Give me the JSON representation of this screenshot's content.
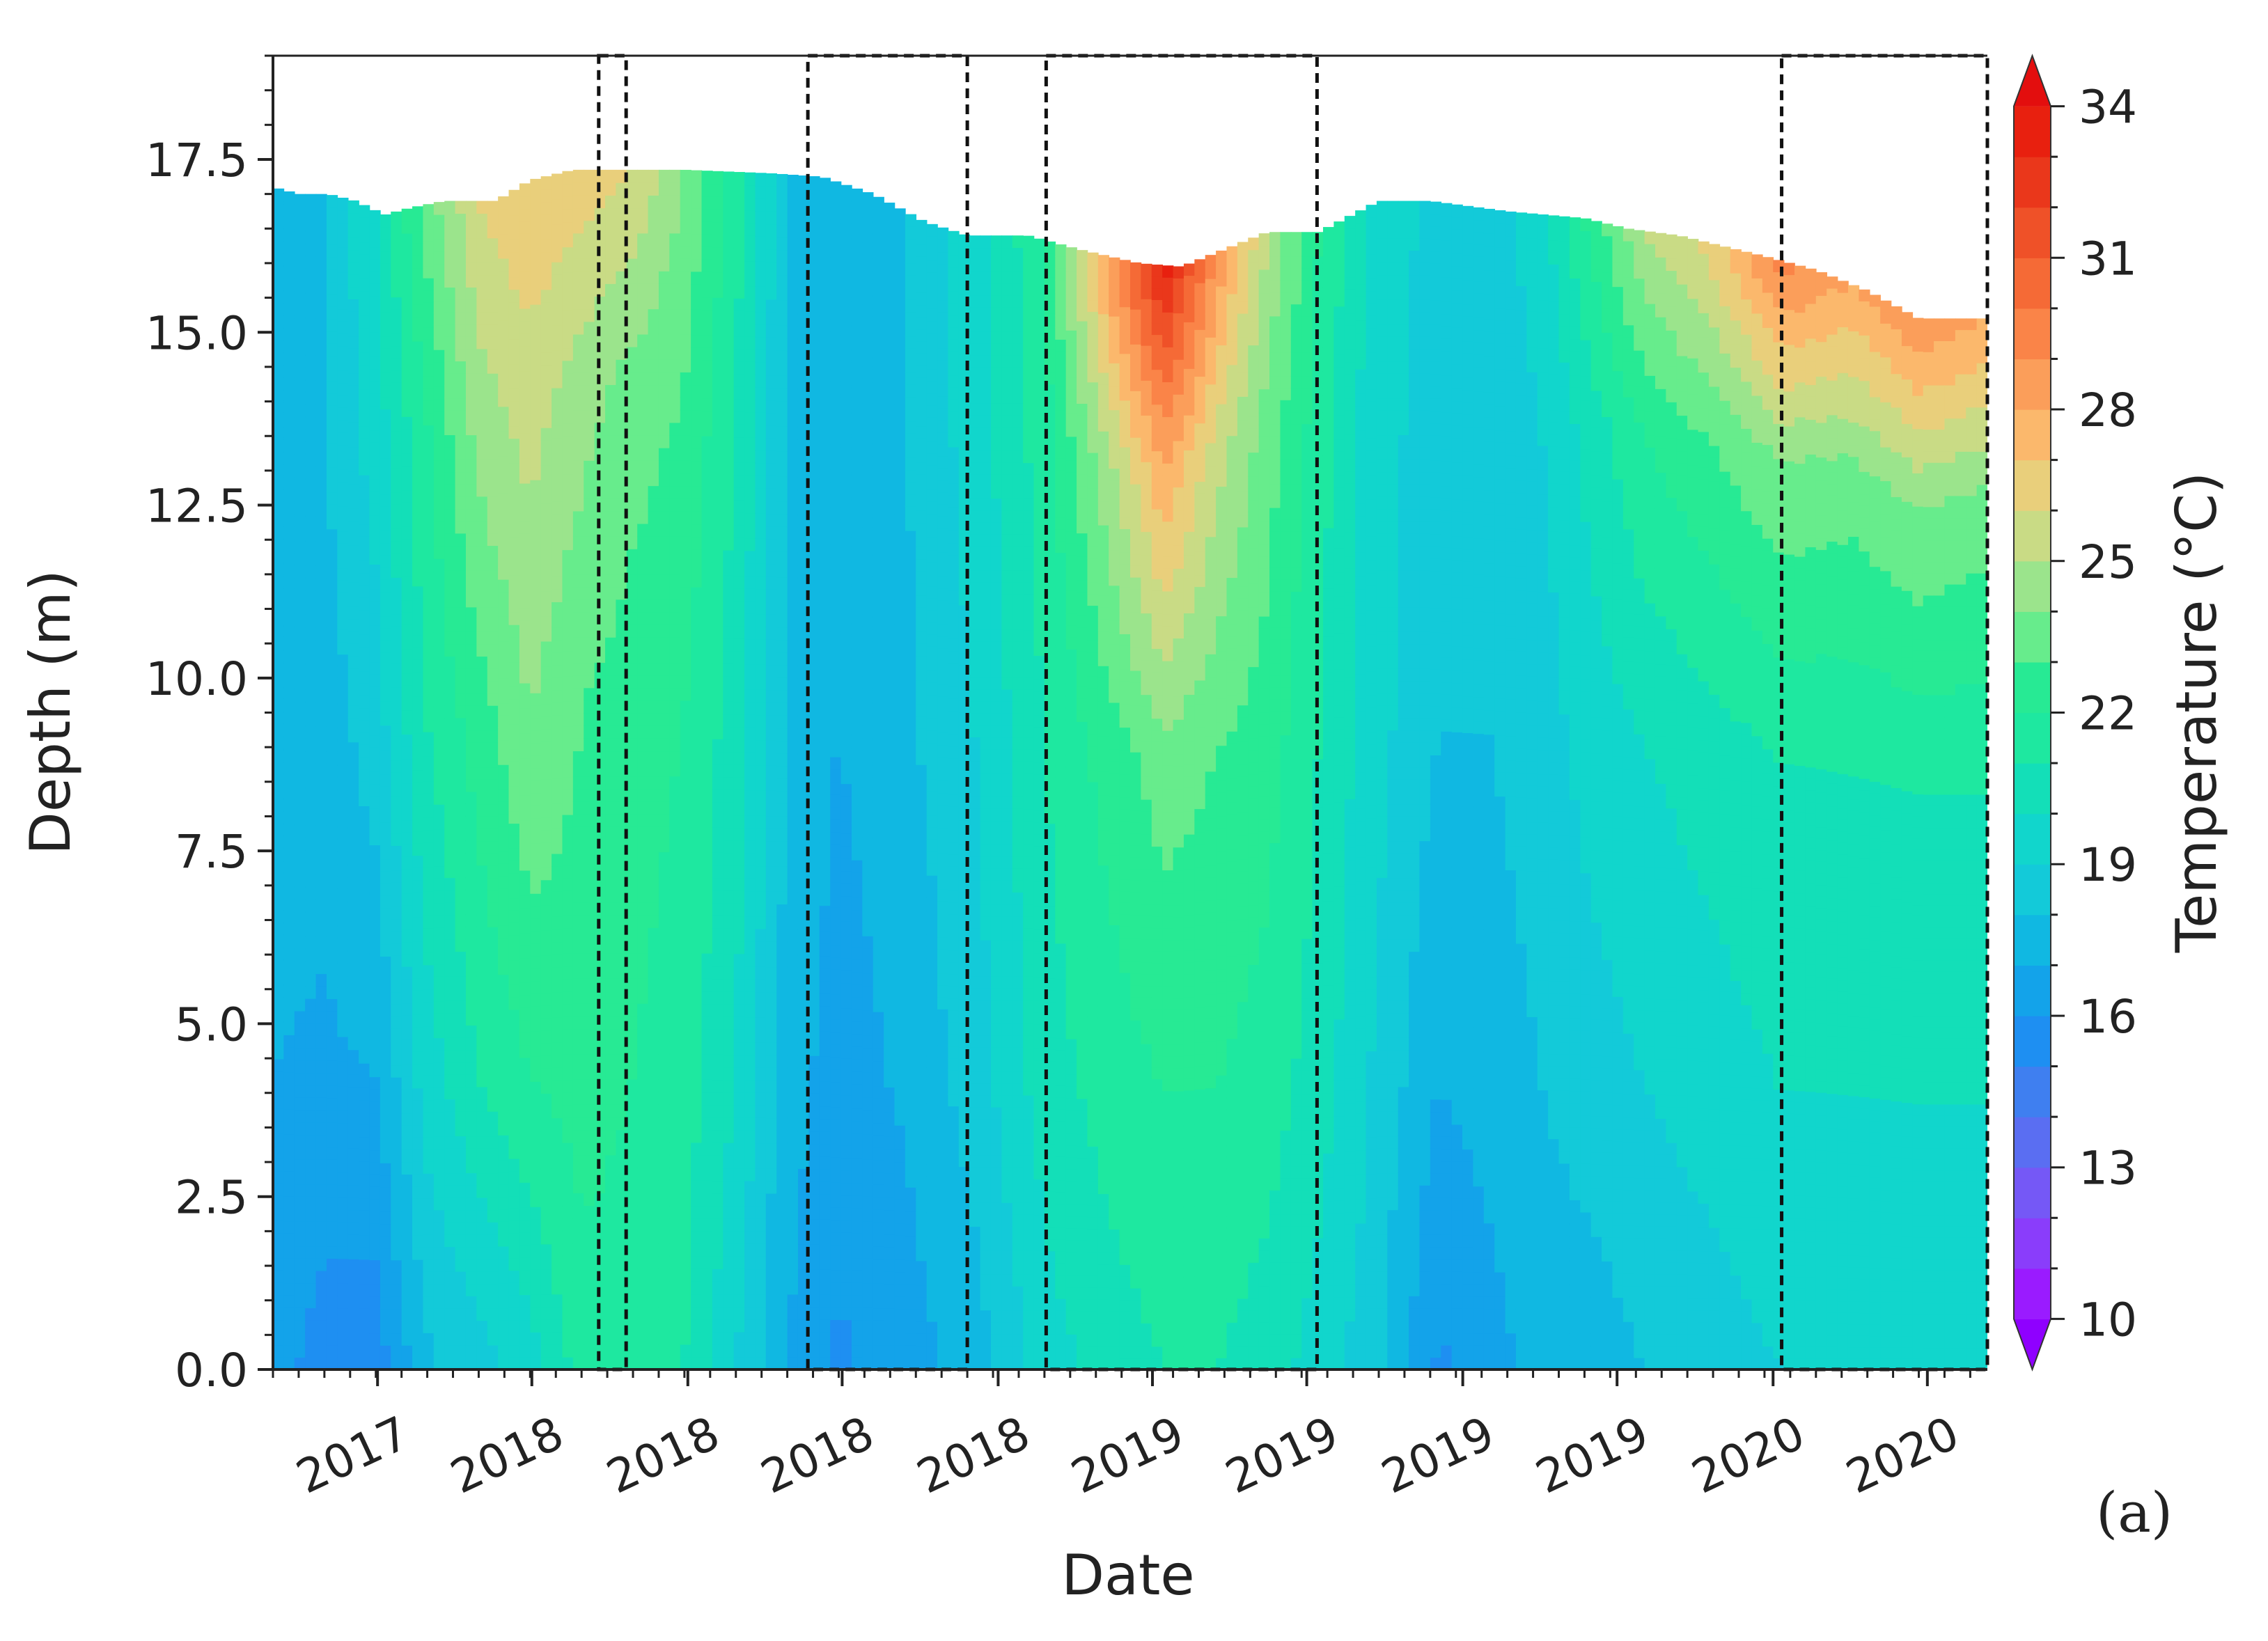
{
  "chart_data": {
    "type": "heatmap",
    "xlabel": "Date",
    "ylabel": "Depth (m)",
    "colorbar_label": "Temperature (°C)",
    "panel_label": "(a)",
    "x_tick_labels": [
      "2017",
      "2018",
      "2018",
      "2018",
      "2018",
      "2019",
      "2019",
      "2019",
      "2019",
      "2020",
      "2020"
    ],
    "x_domain": [
      0,
      100
    ],
    "x_tick_positions": [
      6.1,
      15.1,
      24.2,
      33.2,
      42.3,
      51.3,
      60.3,
      69.4,
      78.4,
      87.5,
      96.5
    ],
    "ylim": [
      0,
      19
    ],
    "y_ticks": [
      0.0,
      2.5,
      5.0,
      7.5,
      10.0,
      12.5,
      15.0,
      17.5
    ],
    "y_tick_labels": [
      "0.0",
      "2.5",
      "5.0",
      "7.5",
      "10.0",
      "12.5",
      "15.0",
      "17.5"
    ],
    "colorbar_ticks": [
      10,
      13,
      16,
      19,
      22,
      25,
      28,
      31,
      34
    ],
    "colorbar_tick_labels": [
      "10",
      "13",
      "16",
      "19",
      "22",
      "25",
      "28",
      "31",
      "34"
    ],
    "colorbar_range": [
      9,
      35
    ],
    "colorbar_extend": "both",
    "color_levels": [
      {
        "upto": 10,
        "color": "#8f00ff"
      },
      {
        "upto": 11,
        "color": "#9a1bff"
      },
      {
        "upto": 12,
        "color": "#8a3dfb"
      },
      {
        "upto": 13,
        "color": "#7558f6"
      },
      {
        "upto": 14,
        "color": "#5a6ef2"
      },
      {
        "upto": 15,
        "color": "#3f7ff0"
      },
      {
        "upto": 16,
        "color": "#1e8ff2"
      },
      {
        "upto": 17,
        "color": "#13a3ea"
      },
      {
        "upto": 18,
        "color": "#10b8e2"
      },
      {
        "upto": 19,
        "color": "#13cad9"
      },
      {
        "upto": 20,
        "color": "#11d6cc"
      },
      {
        "upto": 21,
        "color": "#13dfb8"
      },
      {
        "upto": 22,
        "color": "#1ee8a0"
      },
      {
        "upto": 23,
        "color": "#27ea94"
      },
      {
        "upto": 24,
        "color": "#67ec8c"
      },
      {
        "upto": 25,
        "color": "#9be48c"
      },
      {
        "upto": 26,
        "color": "#c9db85"
      },
      {
        "upto": 27,
        "color": "#e9cf7b"
      },
      {
        "upto": 28,
        "color": "#fbb86c"
      },
      {
        "upto": 29,
        "color": "#fb9e5a"
      },
      {
        "upto": 30,
        "color": "#fa8448"
      },
      {
        "upto": 31,
        "color": "#f56a36"
      },
      {
        "upto": 32,
        "color": "#ef5128"
      },
      {
        "upto": 33,
        "color": "#ea371b"
      },
      {
        "upto": 34,
        "color": "#e8200f"
      },
      {
        "upto": 99,
        "color": "#e30e0e"
      }
    ],
    "surface_depth": {
      "x": [
        0,
        1.5,
        3.2,
        4.8,
        6.5,
        8.0,
        10.0,
        13.0,
        15.0,
        17.5,
        20.0,
        24.0,
        29.0,
        32.0,
        35.0,
        38.0,
        40.5,
        44.0,
        47.0,
        50.5,
        53.0,
        55.5,
        58.0,
        61.0,
        64.5,
        67.5,
        72.0,
        76.5,
        79.0,
        82.0,
        87.0,
        90.0,
        93.0,
        96.0,
        100
      ],
      "y": [
        17.1,
        17.0,
        17.0,
        16.9,
        16.7,
        16.8,
        16.9,
        16.9,
        17.2,
        17.35,
        17.35,
        17.35,
        17.3,
        17.25,
        17.0,
        16.6,
        16.4,
        16.4,
        16.2,
        16.0,
        15.95,
        16.2,
        16.45,
        16.45,
        16.9,
        16.9,
        16.75,
        16.65,
        16.5,
        16.4,
        16.1,
        15.9,
        15.6,
        15.2,
        15.2
      ]
    },
    "temperature_profiles": [
      {
        "x": 0,
        "bottom": 16.5,
        "mid_low": 17.0,
        "mid": 17.5,
        "upper": 17.8,
        "surface": 18.0
      },
      {
        "x": 3,
        "bottom": 15.5,
        "mid_low": 16.8,
        "mid": 17.5,
        "upper": 18.0,
        "surface": 18.0
      },
      {
        "x": 6,
        "bottom": 15.4,
        "mid_low": 17.0,
        "mid": 18.5,
        "upper": 19.5,
        "surface": 20.0
      },
      {
        "x": 9,
        "bottom": 17.8,
        "mid_low": 19.5,
        "mid": 21.0,
        "upper": 22.0,
        "surface": 23.5
      },
      {
        "x": 12,
        "bottom": 18.5,
        "mid_low": 21.0,
        "mid": 22.5,
        "upper": 24.5,
        "surface": 26.0
      },
      {
        "x": 15,
        "bottom": 19.5,
        "mid_low": 22.0,
        "mid": 24.0,
        "upper": 25.5,
        "surface": 27.0
      },
      {
        "x": 18,
        "bottom": 21.5,
        "mid_low": 22.5,
        "mid": 23.0,
        "upper": 24.5,
        "surface": 26.5
      },
      {
        "x": 21,
        "bottom": 21.5,
        "mid_low": 22.0,
        "mid": 22.5,
        "upper": 23.5,
        "surface": 26.0
      },
      {
        "x": 24,
        "bottom": 21.0,
        "mid_low": 21.5,
        "mid": 22.0,
        "upper": 23.0,
        "surface": 24.0
      },
      {
        "x": 27,
        "bottom": 19.0,
        "mid_low": 20.0,
        "mid": 20.5,
        "upper": 21.0,
        "surface": 21.5
      },
      {
        "x": 30,
        "bottom": 17.0,
        "mid_low": 17.5,
        "mid": 18.0,
        "upper": 18.0,
        "surface": 18.0
      },
      {
        "x": 33,
        "bottom": 15.8,
        "mid_low": 16.5,
        "mid": 17.0,
        "upper": 17.5,
        "surface": 17.5
      },
      {
        "x": 37,
        "bottom": 16.5,
        "mid_low": 17.2,
        "mid": 17.8,
        "upper": 18.0,
        "surface": 18.0
      },
      {
        "x": 41,
        "bottom": 17.5,
        "mid_low": 18.5,
        "mid": 19.0,
        "upper": 19.5,
        "surface": 19.5
      },
      {
        "x": 45,
        "bottom": 19.5,
        "mid_low": 20.5,
        "mid": 21.0,
        "upper": 21.5,
        "surface": 22.0
      },
      {
        "x": 49,
        "bottom": 20.5,
        "mid_low": 21.5,
        "mid": 22.5,
        "upper": 25.0,
        "surface": 29.0
      },
      {
        "x": 52,
        "bottom": 21.0,
        "mid_low": 22.0,
        "mid": 23.5,
        "upper": 28.0,
        "surface": 33.5
      },
      {
        "x": 55,
        "bottom": 21.0,
        "mid_low": 22.0,
        "mid": 23.0,
        "upper": 25.5,
        "surface": 29.0
      },
      {
        "x": 58,
        "bottom": 20.5,
        "mid_low": 21.5,
        "mid": 22.5,
        "upper": 23.5,
        "surface": 25.0
      },
      {
        "x": 61,
        "bottom": 19.5,
        "mid_low": 20.5,
        "mid": 21.0,
        "upper": 21.5,
        "surface": 22.0
      },
      {
        "x": 64,
        "bottom": 18.5,
        "mid_low": 19.0,
        "mid": 19.5,
        "upper": 19.5,
        "surface": 20.0
      },
      {
        "x": 68,
        "bottom": 15.8,
        "mid_low": 17.0,
        "mid": 18.0,
        "upper": 18.5,
        "surface": 18.5
      },
      {
        "x": 71,
        "bottom": 16.5,
        "mid_low": 17.5,
        "mid": 18.0,
        "upper": 18.5,
        "surface": 18.5
      },
      {
        "x": 74,
        "bottom": 17.5,
        "mid_low": 18.0,
        "mid": 18.5,
        "upper": 19.0,
        "surface": 19.5
      },
      {
        "x": 77,
        "bottom": 17.5,
        "mid_low": 18.5,
        "mid": 19.5,
        "upper": 20.5,
        "surface": 22.5
      },
      {
        "x": 80,
        "bottom": 18.0,
        "mid_low": 19.0,
        "mid": 20.0,
        "upper": 22.0,
        "surface": 25.0
      },
      {
        "x": 84,
        "bottom": 18.5,
        "mid_low": 19.5,
        "mid": 20.5,
        "upper": 23.0,
        "surface": 26.5
      },
      {
        "x": 88,
        "bottom": 19.0,
        "mid_low": 20.0,
        "mid": 21.0,
        "upper": 24.0,
        "surface": 29.5
      },
      {
        "x": 92,
        "bottom": 19.0,
        "mid_low": 20.0,
        "mid": 21.0,
        "upper": 23.5,
        "surface": 28.0
      },
      {
        "x": 96,
        "bottom": 19.0,
        "mid_low": 20.0,
        "mid": 21.0,
        "upper": 24.0,
        "surface": 29.0
      },
      {
        "x": 100,
        "bottom": 19.0,
        "mid_low": 20.0,
        "mid": 21.0,
        "upper": 23.5,
        "surface": 28.0
      }
    ],
    "highlight_windows": [
      {
        "x0": 19.0,
        "x1": 20.6
      },
      {
        "x0": 31.2,
        "x1": 40.5
      },
      {
        "x0": 45.1,
        "x1": 60.9
      },
      {
        "x0": 88.0,
        "x1": 100
      }
    ]
  }
}
